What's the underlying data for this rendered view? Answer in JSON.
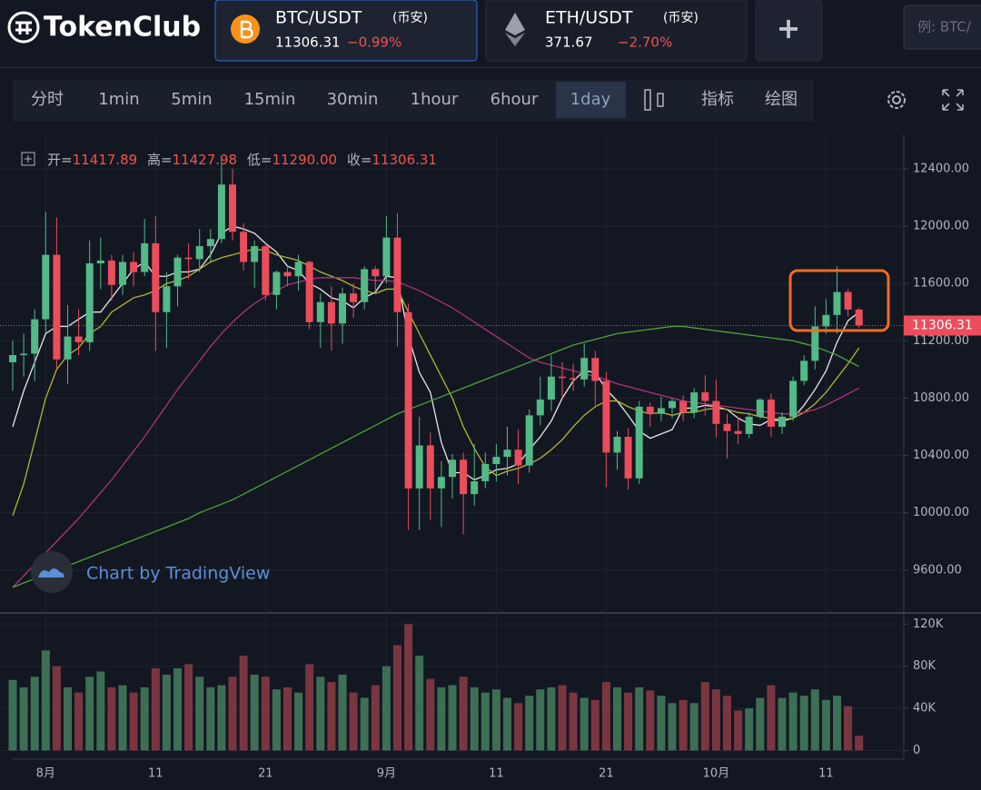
{
  "header": {
    "logo": "TokenClub",
    "tickers": [
      {
        "pair": "BTC/USDT",
        "exchange": "(币安)",
        "price": "11306.31",
        "change": "−0.99%"
      },
      {
        "pair": "ETH/USDT",
        "exchange": "(币安)",
        "price": "371.67",
        "change": "−2.70%"
      }
    ],
    "add_button": "+",
    "search_placeholder": "例: BTC/"
  },
  "toolbar": {
    "intervals": [
      "分时",
      "1min",
      "5min",
      "15min",
      "30min",
      "1hour",
      "6hour",
      "1day"
    ],
    "active_interval": "1day",
    "tools": [
      "指标",
      "绘图"
    ]
  },
  "legend": {
    "items": [
      {
        "label": "开=",
        "value": "11417.89"
      },
      {
        "label": "高=",
        "value": "11427.98"
      },
      {
        "label": "低=",
        "value": "11290.00"
      },
      {
        "label": "收=",
        "value": "11306.31"
      }
    ]
  },
  "watermark": "Chart by TradingView",
  "chart_data": {
    "type": "candlestick",
    "categories": [
      null,
      null,
      null,
      "8月",
      null,
      null,
      null,
      null,
      null,
      null,
      null,
      null,
      null,
      "11",
      null,
      null,
      null,
      null,
      null,
      null,
      null,
      null,
      null,
      "21",
      null,
      null,
      null,
      null,
      null,
      null,
      null,
      null,
      null,
      null,
      "9月",
      null,
      null,
      null,
      null,
      null,
      null,
      null,
      null,
      null,
      "11",
      null,
      null,
      null,
      null,
      null,
      null,
      null,
      null,
      null,
      "21",
      null,
      null,
      null,
      null,
      null,
      null,
      null,
      null,
      null,
      "10月",
      null,
      null,
      null,
      null,
      null,
      null,
      null,
      null,
      null,
      "11",
      null,
      null,
      null
    ],
    "open": [
      11050,
      11100,
      11110,
      11350,
      11800,
      11070,
      11230,
      11190,
      11740,
      11760,
      11590,
      11750,
      11680,
      11880,
      11400,
      11580,
      11780,
      11770,
      11860,
      11910,
      12290,
      11960,
      11750,
      11860,
      11520,
      11680,
      11650,
      11750,
      11330,
      11470,
      11320,
      11530,
      11470,
      11700,
      11650,
      11920,
      11400,
      10170,
      10470,
      10170,
      10250,
      10370,
      10130,
      10220,
      10340,
      10390,
      10440,
      10330,
      10680,
      10790,
      10950,
      10940,
      10930,
      11080,
      10920,
      10420,
      10530,
      10240,
      10740,
      10690,
      10730,
      10780,
      10700,
      10840,
      10780,
      10620,
      10570,
      10550,
      10670,
      10790,
      10600,
      10670,
      10920,
      11060,
      11300,
      11380,
      11540,
      11417.89
    ],
    "high": [
      11200,
      11250,
      11420,
      12100,
      12060,
      11450,
      11420,
      11900,
      11920,
      11800,
      11800,
      11820,
      12050,
      12070,
      11680,
      11800,
      11880,
      11980,
      11980,
      12480,
      12400,
      12020,
      11900,
      11880,
      11690,
      11720,
      11800,
      11760,
      11530,
      11580,
      11570,
      11600,
      11720,
      11720,
      12070,
      12090,
      11460,
      10670,
      10560,
      10360,
      10410,
      10420,
      10480,
      10420,
      10480,
      10600,
      10580,
      10720,
      10950,
      11100,
      11050,
      11040,
      11180,
      11130,
      10980,
      10570,
      10590,
      10780,
      10770,
      10810,
      10800,
      10820,
      10870,
      10960,
      10930,
      10690,
      10670,
      10700,
      10800,
      10830,
      10700,
      10950,
      11100,
      11440,
      11490,
      11720,
      11560,
      11427.98
    ],
    "low": [
      10850,
      10950,
      10920,
      11250,
      11000,
      10900,
      11100,
      11130,
      11560,
      11480,
      11520,
      11580,
      11650,
      11130,
      11150,
      11440,
      11630,
      11680,
      11750,
      11880,
      11900,
      11690,
      11570,
      11480,
      11420,
      11580,
      11550,
      11280,
      11150,
      11130,
      11180,
      11360,
      11420,
      11540,
      11600,
      11160,
      9880,
      9880,
      9950,
      9900,
      10100,
      9850,
      10050,
      10170,
      10220,
      10260,
      10200,
      10280,
      10610,
      10710,
      10800,
      10850,
      10880,
      10750,
      10180,
      10300,
      10160,
      10200,
      10600,
      10640,
      10660,
      10640,
      10660,
      10680,
      10530,
      10380,
      10480,
      10520,
      10660,
      10530,
      10550,
      10640,
      10890,
      11000,
      11250,
      11250,
      11370,
      11290
    ],
    "close": [
      11100,
      11110,
      11350,
      11800,
      11070,
      11230,
      11190,
      11740,
      11760,
      11590,
      11750,
      11680,
      11880,
      11400,
      11580,
      11780,
      11770,
      11860,
      11910,
      12290,
      11960,
      11750,
      11860,
      11520,
      11680,
      11650,
      11750,
      11330,
      11470,
      11320,
      11530,
      11470,
      11700,
      11650,
      11920,
      11400,
      10170,
      10470,
      10170,
      10250,
      10370,
      10130,
      10220,
      10340,
      10390,
      10440,
      10330,
      10680,
      10790,
      10950,
      10940,
      10930,
      11080,
      10920,
      10420,
      10530,
      10240,
      10740,
      10690,
      10730,
      10780,
      10700,
      10840,
      10780,
      10620,
      10570,
      10550,
      10670,
      10790,
      10600,
      10670,
      10920,
      11060,
      11300,
      11380,
      11540,
      11417.89,
      11306.31
    ],
    "volume": [
      67000,
      60000,
      70000,
      95000,
      80000,
      60000,
      55000,
      70000,
      75000,
      60000,
      62000,
      55000,
      60000,
      78000,
      72000,
      78000,
      82000,
      70000,
      60000,
      62000,
      70000,
      90000,
      72000,
      70000,
      58000,
      60000,
      55000,
      82000,
      70000,
      65000,
      72000,
      55000,
      50000,
      62000,
      80000,
      100000,
      120000,
      90000,
      68000,
      60000,
      62000,
      70000,
      60000,
      55000,
      58000,
      50000,
      45000,
      52000,
      58000,
      60000,
      62000,
      55000,
      50000,
      48000,
      65000,
      60000,
      55000,
      60000,
      57000,
      52000,
      45000,
      48000,
      45000,
      65000,
      58000,
      52000,
      38000,
      40000,
      50000,
      62000,
      50000,
      55000,
      52000,
      58000,
      48000,
      52000,
      42000,
      14000
    ],
    "series": [
      {
        "color": "#e8e8e8",
        "values": [
          10600,
          10850,
          11050,
          11250,
          11300,
          11300,
          11350,
          11400,
          11400,
          11500,
          11600,
          11700,
          11750,
          11650,
          11650,
          11680,
          11680,
          11700,
          11800,
          11950,
          12000,
          11980,
          11950,
          11880,
          11820,
          11720,
          11690,
          11600,
          11560,
          11500,
          11480,
          11430,
          11500,
          11540,
          11650,
          11640,
          11230,
          10980,
          10840,
          10490,
          10280,
          10280,
          10230,
          10260,
          10300,
          10310,
          10340,
          10440,
          10530,
          10640,
          10800,
          10920,
          10990,
          10980,
          10860,
          10780,
          10680,
          10570,
          10520,
          10550,
          10580,
          10730,
          10730,
          10750,
          10740,
          10720,
          10660,
          10620,
          10610,
          10650,
          10640,
          10660,
          10750,
          10860,
          10990,
          11190,
          11340,
          11400
        ]
      },
      {
        "color": "#b5b533",
        "values": [
          9980,
          10200,
          10500,
          10800,
          11000,
          11100,
          11150,
          11250,
          11300,
          11400,
          11450,
          11500,
          11520,
          11550,
          11600,
          11620,
          11650,
          11700,
          11750,
          11780,
          11800,
          11820,
          11840,
          11830,
          11800,
          11780,
          11760,
          11720,
          11680,
          11650,
          11620,
          11580,
          11550,
          11530,
          11560,
          11560,
          11400,
          11250,
          11100,
          10950,
          10800,
          10600,
          10450,
          10320,
          10260,
          10290,
          10310,
          10340,
          10380,
          10440,
          10510,
          10600,
          10680,
          10740,
          10780,
          10780,
          10740,
          10710,
          10690,
          10700,
          10680,
          10700,
          10700,
          10720,
          10730,
          10720,
          10700,
          10690,
          10670,
          10660,
          10650,
          10660,
          10700,
          10760,
          10840,
          10940,
          11040,
          11150
        ]
      },
      {
        "color": "#b0327a",
        "values": [
          9480,
          9560,
          9640,
          9720,
          9800,
          9880,
          9960,
          10050,
          10140,
          10230,
          10330,
          10430,
          10530,
          10640,
          10750,
          10860,
          10960,
          11060,
          11160,
          11250,
          11330,
          11400,
          11460,
          11510,
          11550,
          11590,
          11610,
          11630,
          11640,
          11640,
          11640,
          11640,
          11630,
          11620,
          11620,
          11610,
          11580,
          11550,
          11510,
          11470,
          11430,
          11380,
          11330,
          11280,
          11230,
          11180,
          11130,
          11080,
          11050,
          11030,
          11010,
          10990,
          10970,
          10950,
          10930,
          10900,
          10880,
          10860,
          10840,
          10820,
          10800,
          10780,
          10770,
          10760,
          10750,
          10740,
          10730,
          10720,
          10710,
          10700,
          10690,
          10690,
          10700,
          10720,
          10750,
          10790,
          10830,
          10870
        ]
      },
      {
        "color": "#4fa33a",
        "values": [
          9480,
          9510,
          9540,
          9570,
          9600,
          9630,
          9660,
          9690,
          9720,
          9750,
          9780,
          9810,
          9840,
          9870,
          9900,
          9930,
          9960,
          10000,
          10030,
          10060,
          10090,
          10130,
          10170,
          10210,
          10250,
          10290,
          10330,
          10370,
          10410,
          10450,
          10490,
          10530,
          10570,
          10610,
          10650,
          10690,
          10720,
          10750,
          10780,
          10810,
          10840,
          10870,
          10900,
          10930,
          10960,
          10990,
          11020,
          11050,
          11080,
          11110,
          11140,
          11170,
          11190,
          11210,
          11230,
          11250,
          11260,
          11270,
          11280,
          11290,
          11300,
          11300,
          11290,
          11280,
          11270,
          11260,
          11250,
          11240,
          11230,
          11220,
          11210,
          11200,
          11180,
          11160,
          11130,
          11100,
          11060,
          11020
        ]
      }
    ],
    "ylim": [
      9320,
      12640
    ],
    "yticks": [
      {
        "value": 9600,
        "label": "9600.00"
      },
      {
        "value": 10000,
        "label": "10000.00"
      },
      {
        "value": 10400,
        "label": "10400.00"
      },
      {
        "value": 10800,
        "label": "10800.00"
      },
      {
        "value": 11200,
        "label": "11200.00"
      },
      {
        "value": 11600,
        "label": "11600.00"
      },
      {
        "value": 12000,
        "label": "12000.00"
      },
      {
        "value": 12400,
        "label": "12400.00"
      }
    ],
    "volume_ylim": [
      -3000,
      128000
    ],
    "volume_yticks": [
      0,
      {
        "value": 40000,
        "label": "40K"
      },
      {
        "value": 80000,
        "label": "80K"
      },
      {
        "value": 120000,
        "label": "120K"
      }
    ],
    "up_color": "#53b987",
    "down_color": "#eb4d5c",
    "volume_up_color": "#3d6f55",
    "volume_down_color": "#7a3640",
    "grid": true
  }
}
